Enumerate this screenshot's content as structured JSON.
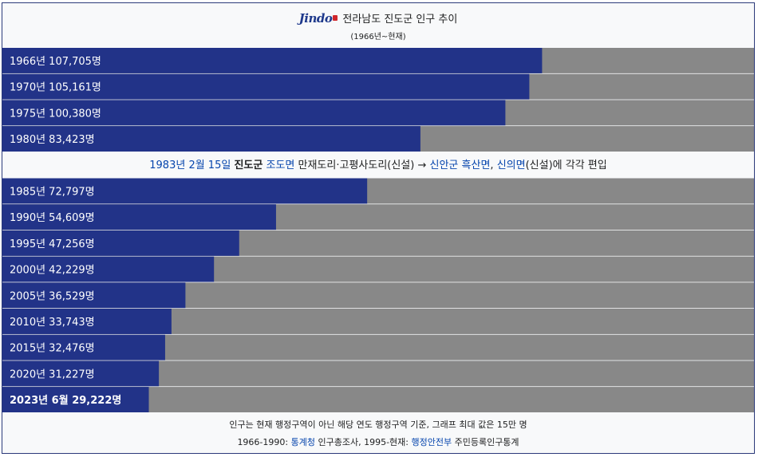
{
  "header": {
    "logo_text": "Jindo",
    "title": "전라남도 진도군 인구 추이",
    "subtitle": "(1966년~현재)"
  },
  "chart_data": {
    "type": "bar",
    "orientation": "horizontal",
    "title": "전라남도 진도군 인구 추이",
    "subtitle": "(1966년~현재)",
    "xlim": [
      0,
      150000
    ],
    "categories": [
      "1966년",
      "1970년",
      "1975년",
      "1980년",
      "1985년",
      "1990년",
      "1995년",
      "2000년",
      "2005년",
      "2010년",
      "2015년",
      "2020년",
      "2023년 6월"
    ],
    "values": [
      107705,
      105161,
      100380,
      83423,
      72797,
      54609,
      47256,
      42229,
      36529,
      33743,
      32476,
      31227,
      29222
    ],
    "labels": [
      "1966년 107,705명",
      "1970년 105,161명",
      "1975년 100,380명",
      "1980년 83,423명",
      "1985년 72,797명",
      "1990년 54,609명",
      "1995년 47,256명",
      "2000년 42,229명",
      "2005년 36,529명",
      "2010년 33,743명",
      "2015년 32,476명",
      "2020년 31,227명",
      "2023년 6월 29,222명"
    ],
    "colors": {
      "bar": "#223388",
      "track": "#888888",
      "label": "#ffffff"
    },
    "annotation": {
      "after_index": 3,
      "segments": [
        {
          "text": "1983년 2월 15일",
          "style": "link"
        },
        {
          "text": " ",
          "style": "plain"
        },
        {
          "text": "진도군",
          "style": "bold"
        },
        {
          "text": " ",
          "style": "plain"
        },
        {
          "text": "조도면",
          "style": "link"
        },
        {
          "text": " 만재도리·고평사도리(신설) → ",
          "style": "plain"
        },
        {
          "text": "신안군 흑산면",
          "style": "link"
        },
        {
          "text": ", ",
          "style": "plain"
        },
        {
          "text": "신의면",
          "style": "link"
        },
        {
          "text": "(신설)에 각각 편입",
          "style": "plain"
        }
      ]
    }
  },
  "footer": {
    "note": "인구는 현재 행정구역이 아닌 해당 연도 행정구역 기준, 그래프 최대 값은 15만 명",
    "source_prefix": "1966-1990: ",
    "source_link1": "통계청",
    "source_mid": " 인구총조사, 1995-현재: ",
    "source_link2": "행정안전부",
    "source_suffix": " 주민등록인구통계"
  },
  "colors": {
    "link": "#0645ad",
    "border": "#2b3a7a"
  }
}
